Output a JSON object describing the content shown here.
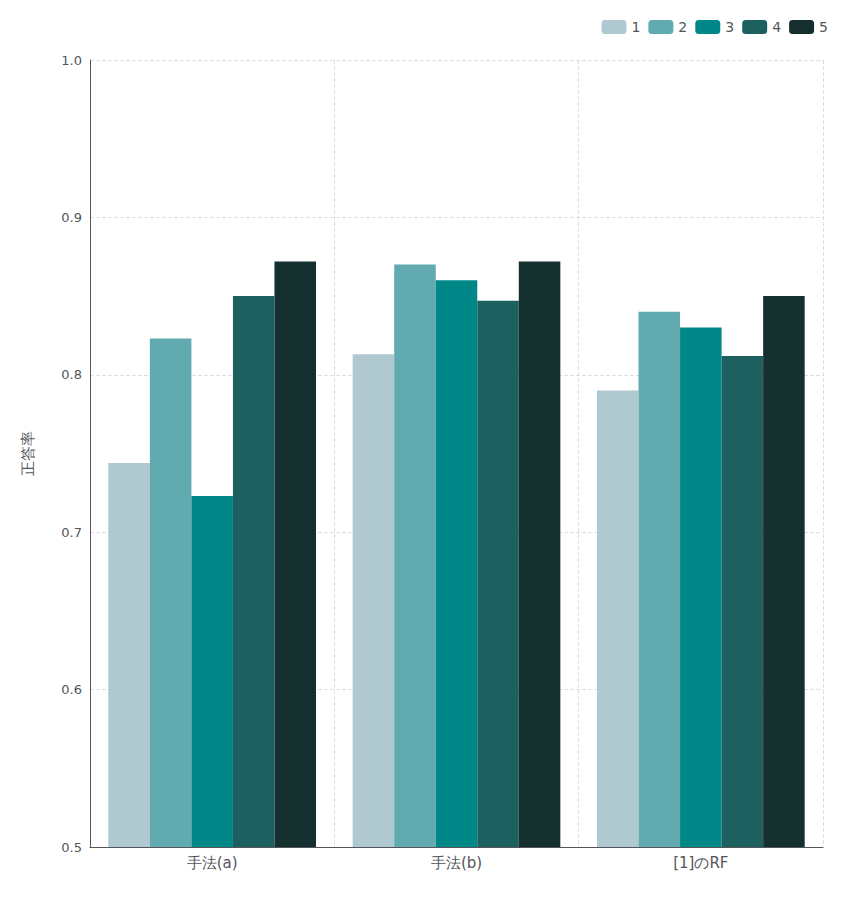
{
  "chart_data": {
    "type": "bar",
    "categories": [
      "手法(a)",
      "手法(b)",
      "[1]のRF"
    ],
    "series": [
      {
        "name": "1",
        "color": "#b0c8d0",
        "values": [
          0.744,
          0.813,
          0.79
        ]
      },
      {
        "name": "2",
        "color": "#60aab0",
        "values": [
          0.823,
          0.87,
          0.84
        ]
      },
      {
        "name": "3",
        "color": "#008888",
        "values": [
          0.723,
          0.86,
          0.83
        ]
      },
      {
        "name": "4",
        "color": "#1e6060",
        "values": [
          0.85,
          0.847,
          0.812
        ]
      },
      {
        "name": "5",
        "color": "#152e2e",
        "values": [
          0.872,
          0.872,
          0.85
        ]
      }
    ],
    "ylabel": "正答率",
    "ylim": [
      0.5,
      1.0
    ],
    "yticks": [
      0.5,
      0.6,
      0.7,
      0.8,
      0.9,
      {
        "value": 1.0,
        "label": "1.0"
      }
    ],
    "grid": true,
    "legend": "upper right"
  }
}
